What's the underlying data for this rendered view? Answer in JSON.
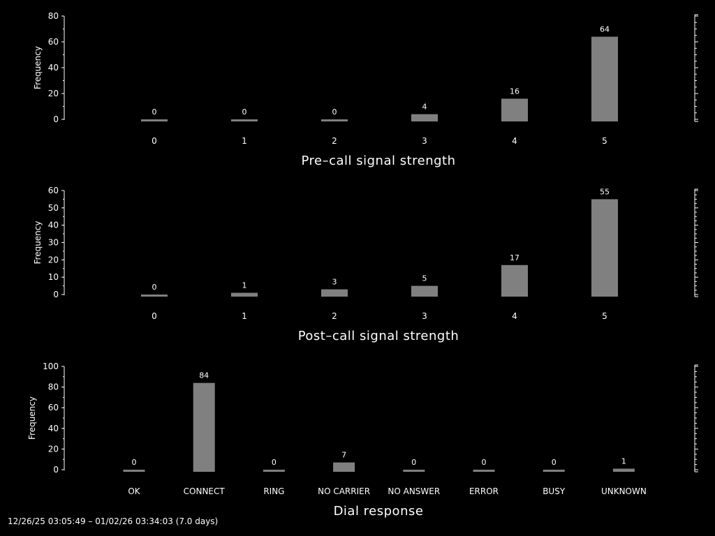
{
  "colors": {
    "background": "#000000",
    "bar": "#808080",
    "axis": "#ffffff",
    "text": "#ffffff"
  },
  "footer": {
    "range": "12/26/25 03:05:49 – 01/02/26 03:34:03 (7.0 days)"
  },
  "chart_data": [
    {
      "type": "bar",
      "title": "",
      "xlabel": "Pre–call signal strength",
      "ylabel": "Frequency",
      "categories": [
        "0",
        "1",
        "2",
        "3",
        "4",
        "5"
      ],
      "values": [
        0,
        0,
        0,
        4,
        16,
        64
      ],
      "value_labels": [
        "0",
        "0",
        "0",
        "4",
        "16",
        "64"
      ],
      "ylim": [
        0,
        80
      ],
      "yticks": [
        0,
        20,
        40,
        60,
        80
      ],
      "grid": false
    },
    {
      "type": "bar",
      "title": "",
      "xlabel": "Post–call signal strength",
      "ylabel": "Frequency",
      "categories": [
        "0",
        "1",
        "2",
        "3",
        "4",
        "5"
      ],
      "values": [
        0,
        1,
        3,
        5,
        17,
        55
      ],
      "value_labels": [
        "0",
        "1",
        "3",
        "5",
        "17",
        "55"
      ],
      "ylim": [
        0,
        60
      ],
      "yticks": [
        0,
        10,
        20,
        30,
        40,
        50,
        60
      ],
      "grid": false
    },
    {
      "type": "bar",
      "title": "",
      "xlabel": "Dial response",
      "ylabel": "Frequency",
      "categories": [
        "OK",
        "CONNECT",
        "RING",
        "NO CARRIER",
        "NO ANSWER",
        "ERROR",
        "BUSY",
        "UNKNOWN"
      ],
      "values": [
        0,
        84,
        0,
        7,
        0,
        0,
        0,
        1
      ],
      "value_labels": [
        "0",
        "84",
        "0",
        "7",
        "0",
        "0",
        "0",
        "1"
      ],
      "ylim": [
        0,
        100
      ],
      "yticks": [
        0,
        20,
        40,
        60,
        80,
        100
      ],
      "grid": false
    }
  ]
}
